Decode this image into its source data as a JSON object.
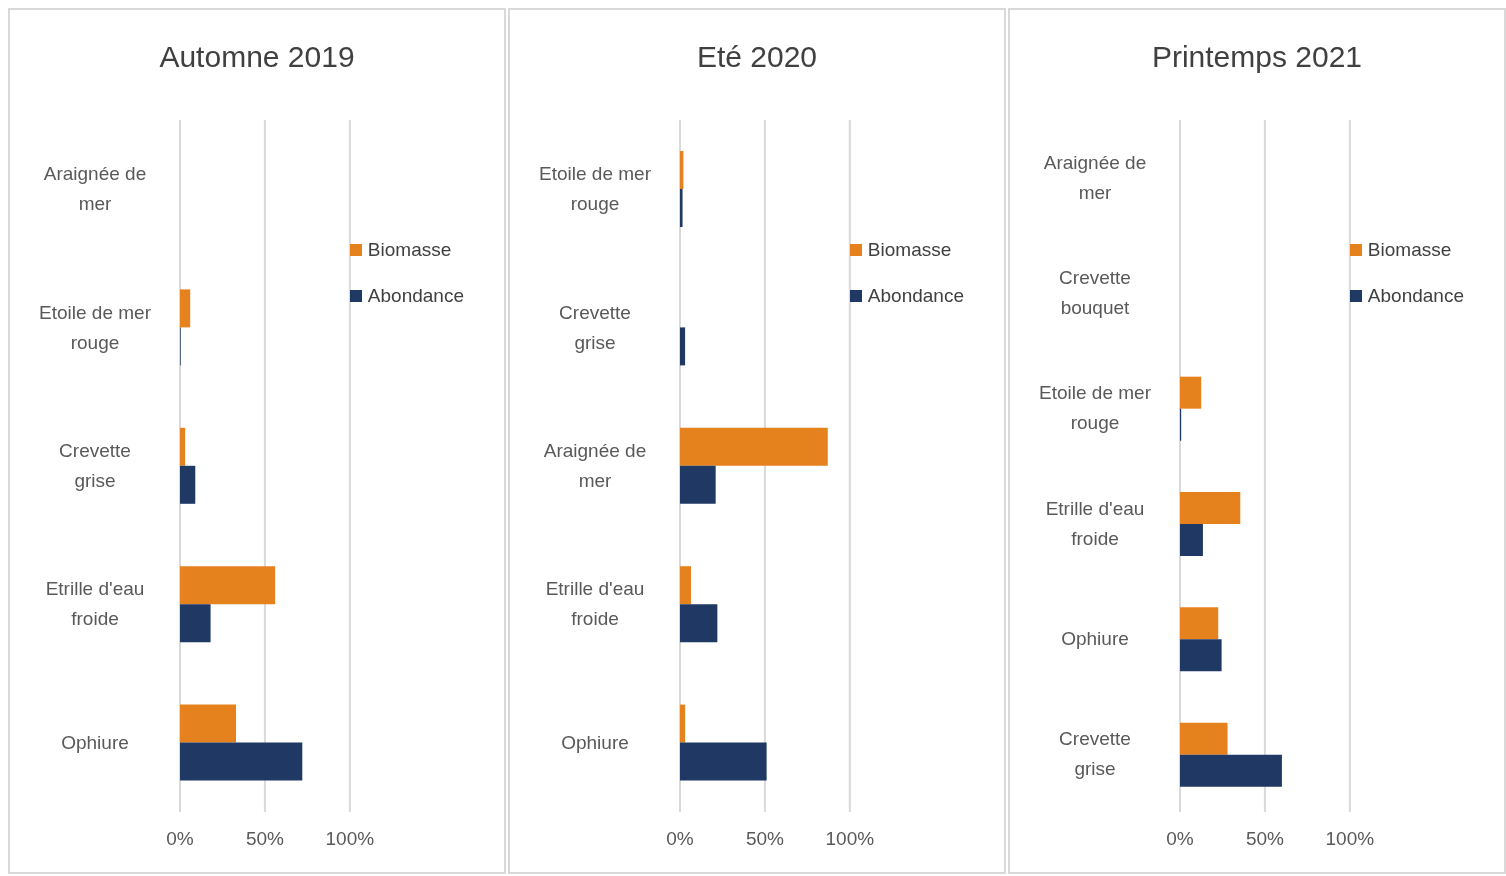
{
  "chart_data": [
    {
      "type": "bar",
      "orientation": "horizontal",
      "title": "Automne 2019",
      "categories": [
        "Araignée de mer",
        "Etoile de mer rouge",
        "Crevette grise",
        "Etrille d'eau froide",
        "Ophiure"
      ],
      "series": [
        {
          "name": "Biomasse",
          "color": "#e6821e",
          "values": [
            null,
            6,
            3,
            56,
            33
          ]
        },
        {
          "name": "Abondance",
          "color": "#1f3864",
          "values": [
            null,
            0.4,
            9,
            18,
            72
          ]
        }
      ],
      "xlim": [
        0,
        100
      ],
      "xticks": [
        {
          "value": 0,
          "label": "0%"
        },
        {
          "value": 50,
          "label": "50%"
        },
        {
          "value": 100,
          "label": "100%"
        }
      ],
      "grid": "x",
      "legend": "top right"
    },
    {
      "type": "bar",
      "orientation": "horizontal",
      "title": "Eté 2020",
      "categories": [
        "Etoile de mer rouge",
        "Crevette grise",
        "Araignée de mer",
        "Etrille d'eau froide",
        "Ophiure"
      ],
      "series": [
        {
          "name": "Biomasse",
          "color": "#e6821e",
          "values": [
            2,
            null,
            87,
            6.5,
            3
          ]
        },
        {
          "name": "Abondance",
          "color": "#1f3864",
          "values": [
            1.5,
            3,
            21,
            22,
            51
          ]
        }
      ],
      "xlim": [
        0,
        100
      ],
      "xticks": [
        {
          "value": 0,
          "label": "0%"
        },
        {
          "value": 50,
          "label": "50%"
        },
        {
          "value": 100,
          "label": "100%"
        }
      ],
      "grid": "x",
      "legend": "top right"
    },
    {
      "type": "bar",
      "orientation": "horizontal",
      "title": "Printemps 2021",
      "categories": [
        "Araignée de mer",
        "Crevette bouquet",
        "Etoile de mer rouge",
        "Etrille d'eau froide",
        "Ophiure",
        "Crevette grise"
      ],
      "series": [
        {
          "name": "Biomasse",
          "color": "#e6821e",
          "values": [
            null,
            null,
            12.5,
            35.5,
            22.5,
            28
          ]
        },
        {
          "name": "Abondance",
          "color": "#1f3864",
          "values": [
            null,
            null,
            0.7,
            13.5,
            24.5,
            60
          ]
        }
      ],
      "xlim": [
        0,
        100
      ],
      "xticks": [
        {
          "value": 0,
          "label": "0%"
        },
        {
          "value": 50,
          "label": "50%"
        },
        {
          "value": 100,
          "label": "100%"
        }
      ],
      "grid": "x",
      "legend": "top right"
    }
  ]
}
